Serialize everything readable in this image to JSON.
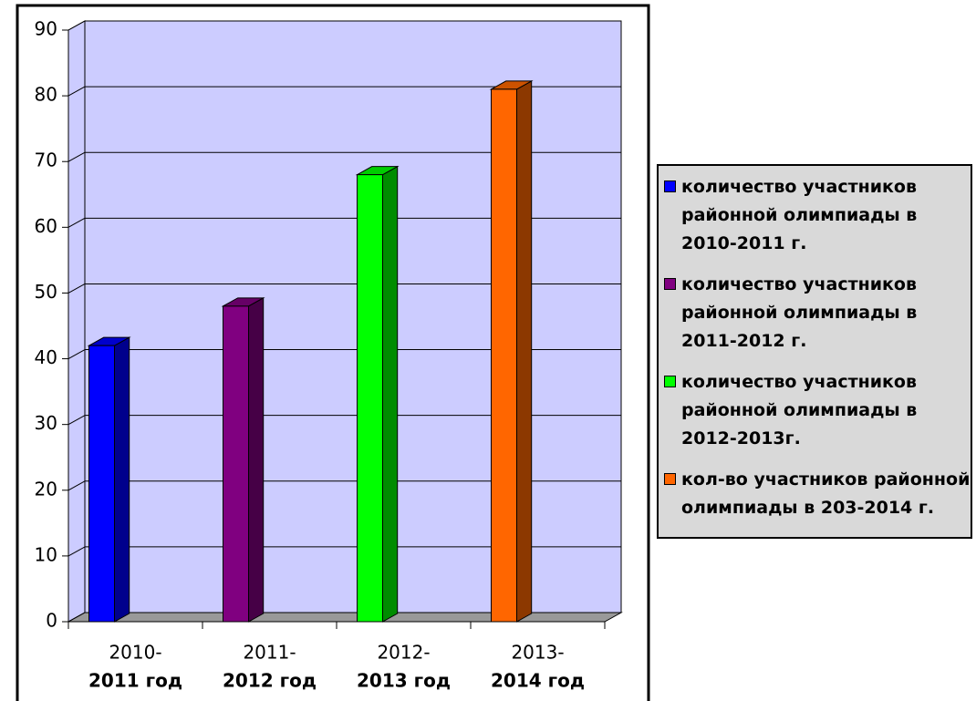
{
  "chart_data": {
    "type": "bar3d",
    "categories": [
      [
        "2010-",
        "2011 год"
      ],
      [
        "2011-",
        "2012 год"
      ],
      [
        "2012-",
        "2013 год"
      ],
      [
        "2013-",
        "2014 год"
      ]
    ],
    "series": [
      {
        "name": "количество участников районной олимпиады в 2010-2011 г.",
        "color": "#0000ff",
        "values": [
          42,
          null,
          null,
          null
        ]
      },
      {
        "name": "количество участников районной олимпиады в 2011-2012 г.",
        "color": "#800080",
        "values": [
          null,
          48,
          null,
          null
        ]
      },
      {
        "name": "количество участников районной олимпиады в 2012-2013г.",
        "color": "#00ff00",
        "values": [
          null,
          null,
          68,
          null
        ]
      },
      {
        "name": "кол-во участников районной олимпиады в 203-2014 г.",
        "color": "#ff6600",
        "values": [
          null,
          null,
          null,
          81
        ]
      }
    ],
    "ylim": [
      0,
      90
    ],
    "yticks": [
      0,
      10,
      20,
      30,
      40,
      50,
      60,
      70,
      80,
      90
    ],
    "grid": true,
    "legend": "right"
  }
}
